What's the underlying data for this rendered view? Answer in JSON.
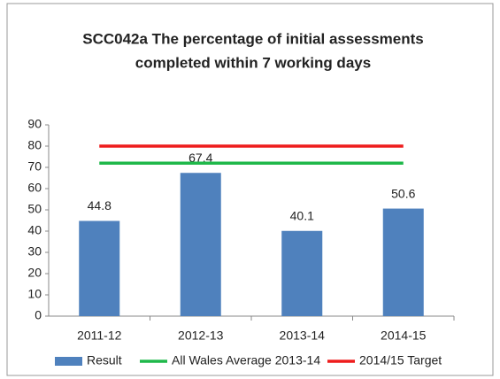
{
  "chart_data": {
    "type": "bar",
    "title": [
      "SCC042a The percentage of initial assessments",
      "completed within 7 working days"
    ],
    "categories": [
      "2011-12",
      "2012-13",
      "2013-14",
      "2014-15"
    ],
    "series": [
      {
        "name": "Result",
        "type": "bar",
        "color": "#4f81bd",
        "values": [
          44.8,
          67.4,
          40.1,
          50.6
        ]
      },
      {
        "name": "All Wales Average 2013-14",
        "type": "line",
        "color": "#1fb84a",
        "values": [
          72,
          72,
          72,
          72
        ]
      },
      {
        "name": "2014/15 Target",
        "type": "line",
        "color": "#ee1c1c",
        "values": [
          80,
          80,
          80,
          80
        ]
      }
    ],
    "ylim": [
      0,
      90
    ],
    "yticks": [
      0,
      10,
      20,
      30,
      40,
      50,
      60,
      70,
      80,
      90
    ],
    "grid": false,
    "legend": "bottom"
  }
}
